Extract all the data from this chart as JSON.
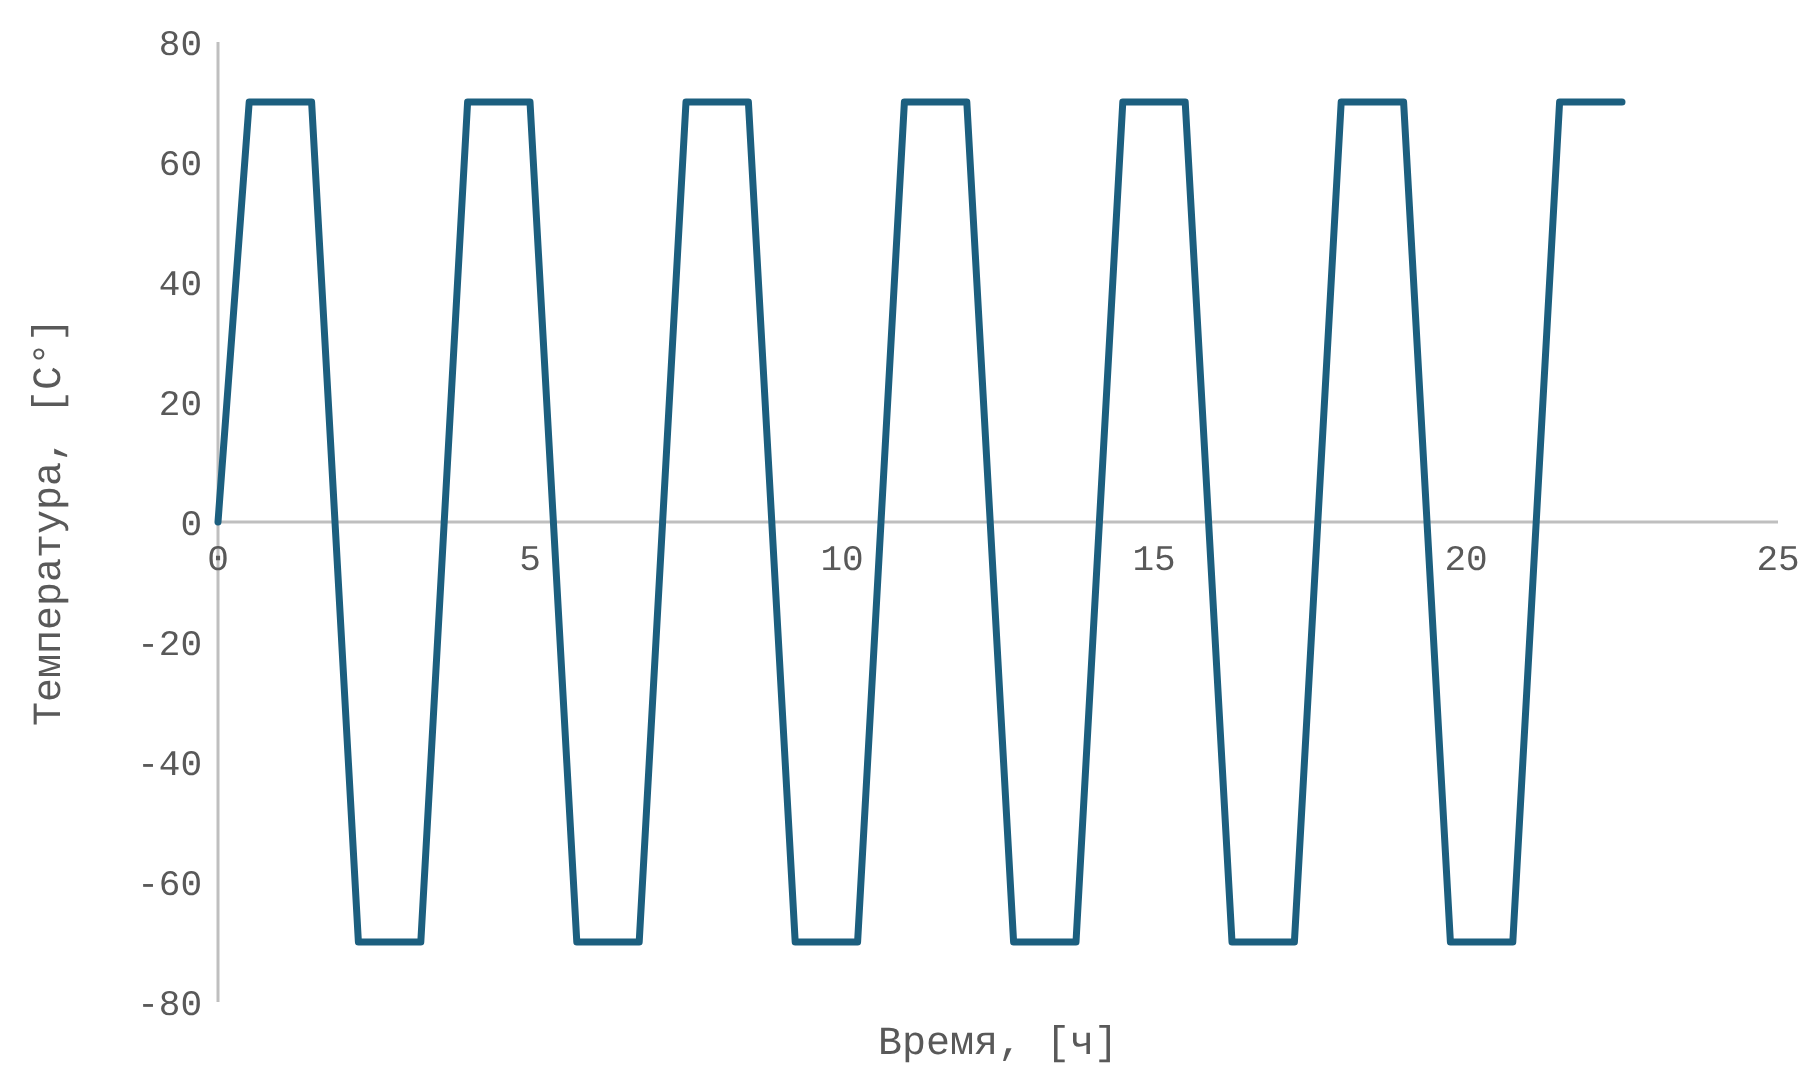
{
  "chart_data": {
    "type": "line",
    "xlabel": "Время, [ч]",
    "ylabel": "Температура, [C°]",
    "x": [
      0,
      0.5,
      1.5,
      2.25,
      3.25,
      4.0,
      5.0,
      5.75,
      6.75,
      7.5,
      8.5,
      9.25,
      10.25,
      11.0,
      12.0,
      12.75,
      13.75,
      14.5,
      15.5,
      16.25,
      17.25,
      18.0,
      19.0,
      19.75,
      20.75,
      21.5,
      22.5
    ],
    "series": [
      {
        "color": "#1c5f7f",
        "values": [
          0,
          70,
          70,
          -70,
          -70,
          70,
          70,
          -70,
          -70,
          70,
          70,
          -70,
          -70,
          70,
          70,
          -70,
          -70,
          70,
          70,
          -70,
          -70,
          70,
          70,
          -70,
          -70,
          70,
          70
        ]
      }
    ],
    "xlim": [
      0,
      25
    ],
    "xticks": [
      0,
      5,
      10,
      15,
      20,
      25
    ],
    "ylim": [
      -80,
      80
    ],
    "yticks": [
      -80,
      -60,
      -40,
      -20,
      0,
      20,
      40,
      60,
      80
    ],
    "grid": false,
    "marker": "none",
    "line_style": "solid"
  }
}
